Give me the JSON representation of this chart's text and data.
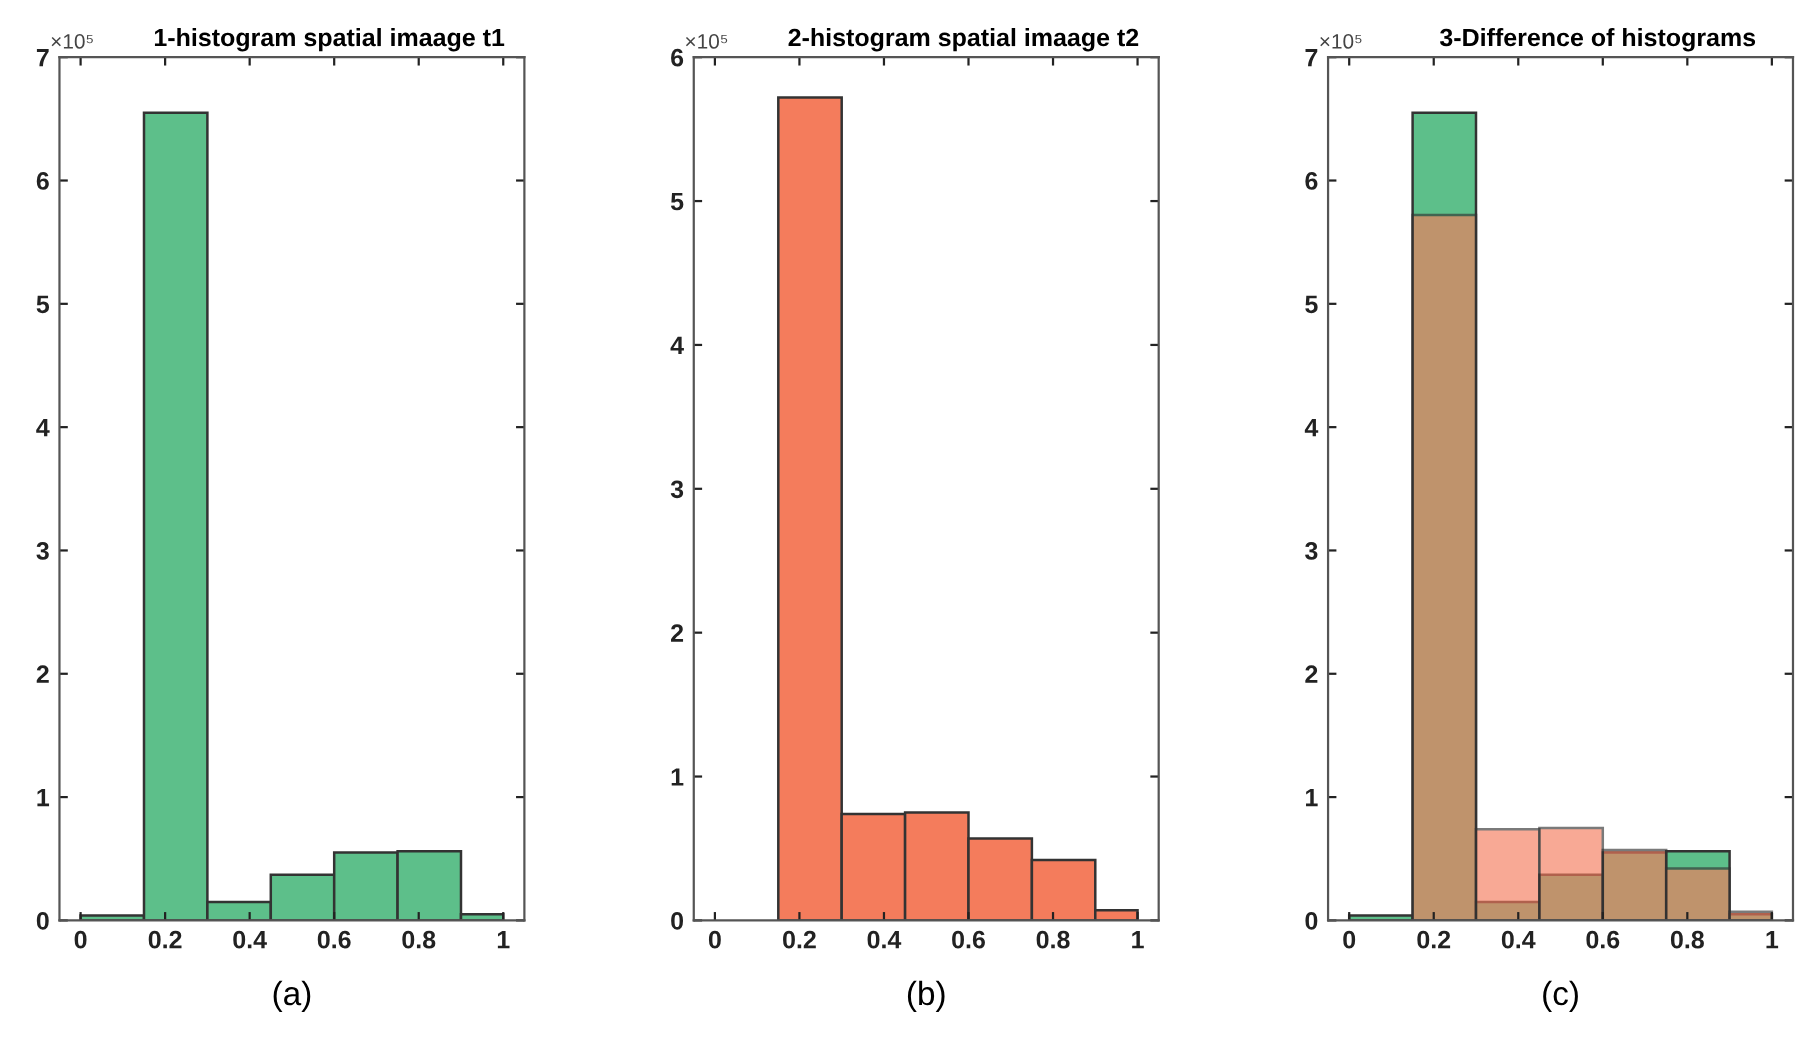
{
  "chart_data": [
    {
      "type": "histogram",
      "title": "1-histogram spatial imaage t1",
      "annotations": [
        "×10⁵",
        "(a)"
      ],
      "bins": [
        0,
        0.15,
        0.3,
        0.45,
        0.6,
        0.75,
        0.9,
        1.0
      ],
      "values": [
        0.04,
        6.55,
        0.15,
        0.37,
        0.55,
        0.56,
        0.05
      ],
      "color": "#5dbf8a",
      "xlim": [
        -0.05,
        1.05
      ],
      "xticks": [
        0,
        0.2,
        0.4,
        0.6,
        0.8,
        1
      ],
      "ylim": [
        0,
        7
      ],
      "yticks": [
        0,
        1,
        2,
        3,
        4,
        5,
        6,
        7
      ],
      "grid": false
    },
    {
      "type": "histogram",
      "title": "2-histogram spatial imaage t2",
      "annotations": [
        "×10⁵",
        "(b)"
      ],
      "bins": [
        0.15,
        0.3,
        0.45,
        0.6,
        0.75,
        0.9,
        1.0
      ],
      "values": [
        5.72,
        0.74,
        0.75,
        0.57,
        0.42,
        0.07
      ],
      "color": "#f47c5c",
      "xlim": [
        -0.05,
        1.05
      ],
      "xticks": [
        0,
        0.2,
        0.4,
        0.6,
        0.8,
        1
      ],
      "ylim": [
        0,
        6
      ],
      "yticks": [
        0,
        1,
        2,
        3,
        4,
        5,
        6
      ],
      "grid": false
    },
    {
      "type": "histogram",
      "title": "3-Difference of histograms",
      "annotations": [
        "×10⁵",
        "(c)"
      ],
      "bins": [
        0,
        0.15,
        0.3,
        0.45,
        0.6,
        0.75,
        0.9,
        1.0
      ],
      "series": [
        {
          "color": "#5dbf8a",
          "values": [
            0.04,
            6.55,
            0.15,
            0.37,
            0.55,
            0.56,
            0.05
          ]
        },
        {
          "color": "#f47c5c",
          "values": [
            null,
            5.72,
            0.74,
            0.75,
            0.57,
            0.42,
            0.07
          ]
        }
      ],
      "xlim": [
        -0.05,
        1.05
      ],
      "xticks": [
        0,
        0.2,
        0.4,
        0.6,
        0.8,
        1
      ],
      "ylim": [
        0,
        7
      ],
      "yticks": [
        0,
        1,
        2,
        3,
        4,
        5,
        6,
        7
      ],
      "grid": false
    }
  ]
}
